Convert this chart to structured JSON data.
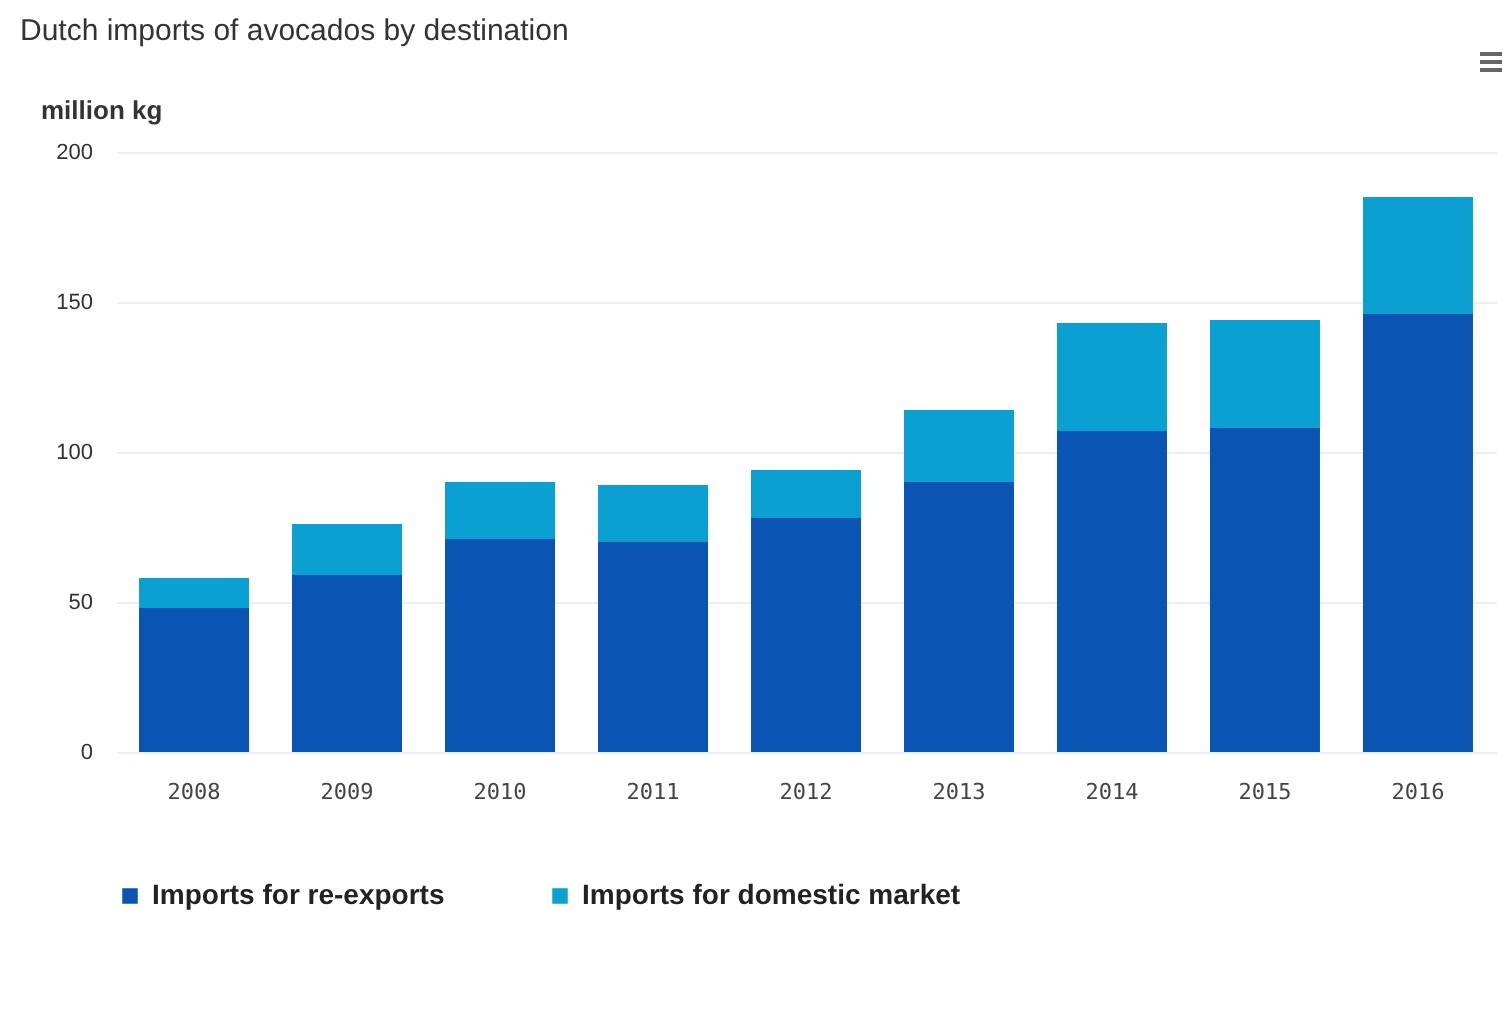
{
  "chart_data": {
    "type": "bar",
    "title": "Dutch imports of avocados by destination",
    "ylabel": "million kg",
    "categories": [
      "2008",
      "2009",
      "2010",
      "2011",
      "2012",
      "2013",
      "2014",
      "2015",
      "2016"
    ],
    "stacked": true,
    "series": [
      {
        "name": "Imports for re-exports",
        "color": "#0a55b4",
        "values": [
          48,
          59,
          71,
          70,
          78,
          90,
          107,
          108,
          146
        ]
      },
      {
        "name": "Imports for domestic market",
        "color": "#0aa0d2",
        "values": [
          10,
          17,
          19,
          19,
          16,
          24,
          36,
          36,
          39
        ]
      }
    ],
    "ylim": [
      0,
      200
    ],
    "yticks": [
      0,
      50,
      100,
      150,
      200
    ],
    "grid": "y",
    "legend": "bottom"
  }
}
